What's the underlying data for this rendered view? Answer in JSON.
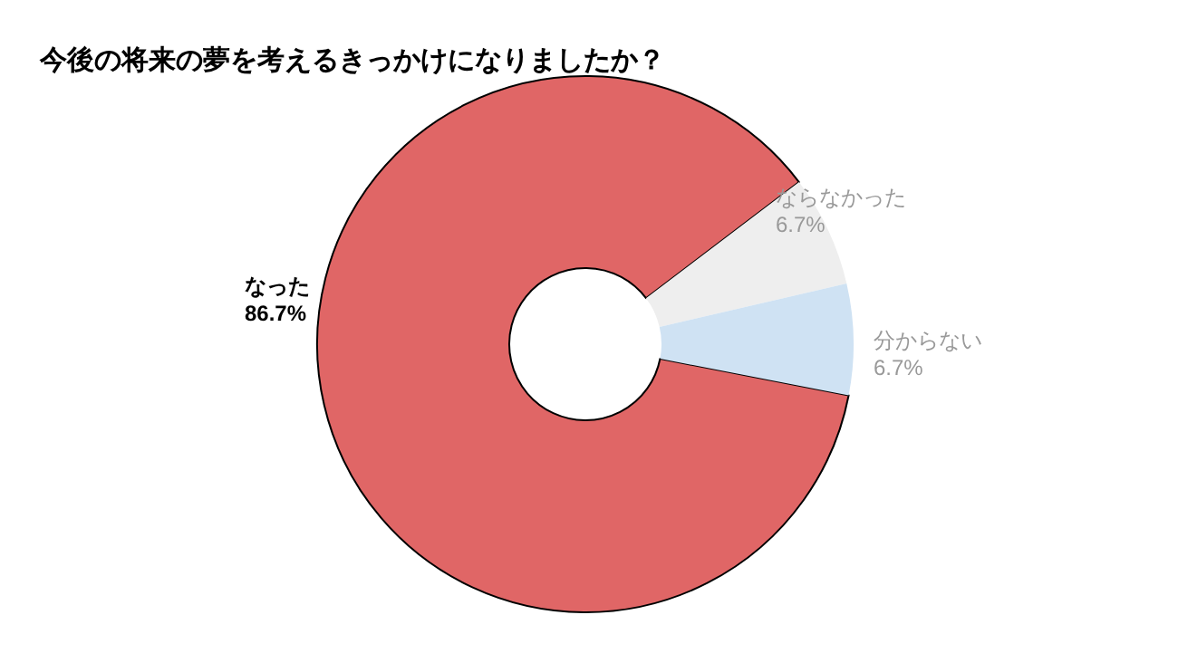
{
  "chart_data": {
    "type": "donut",
    "title": "今後の将来の夢を考えるきっかけになりましたか？",
    "categories": [
      "なった",
      "ならなかった",
      "分からない"
    ],
    "values": [
      86.7,
      6.7,
      6.7
    ],
    "colors": [
      "#e06666",
      "#eeeeee",
      "#cfe2f3"
    ],
    "value_labels": [
      "86.7%",
      "6.7%",
      "6.7%"
    ]
  }
}
